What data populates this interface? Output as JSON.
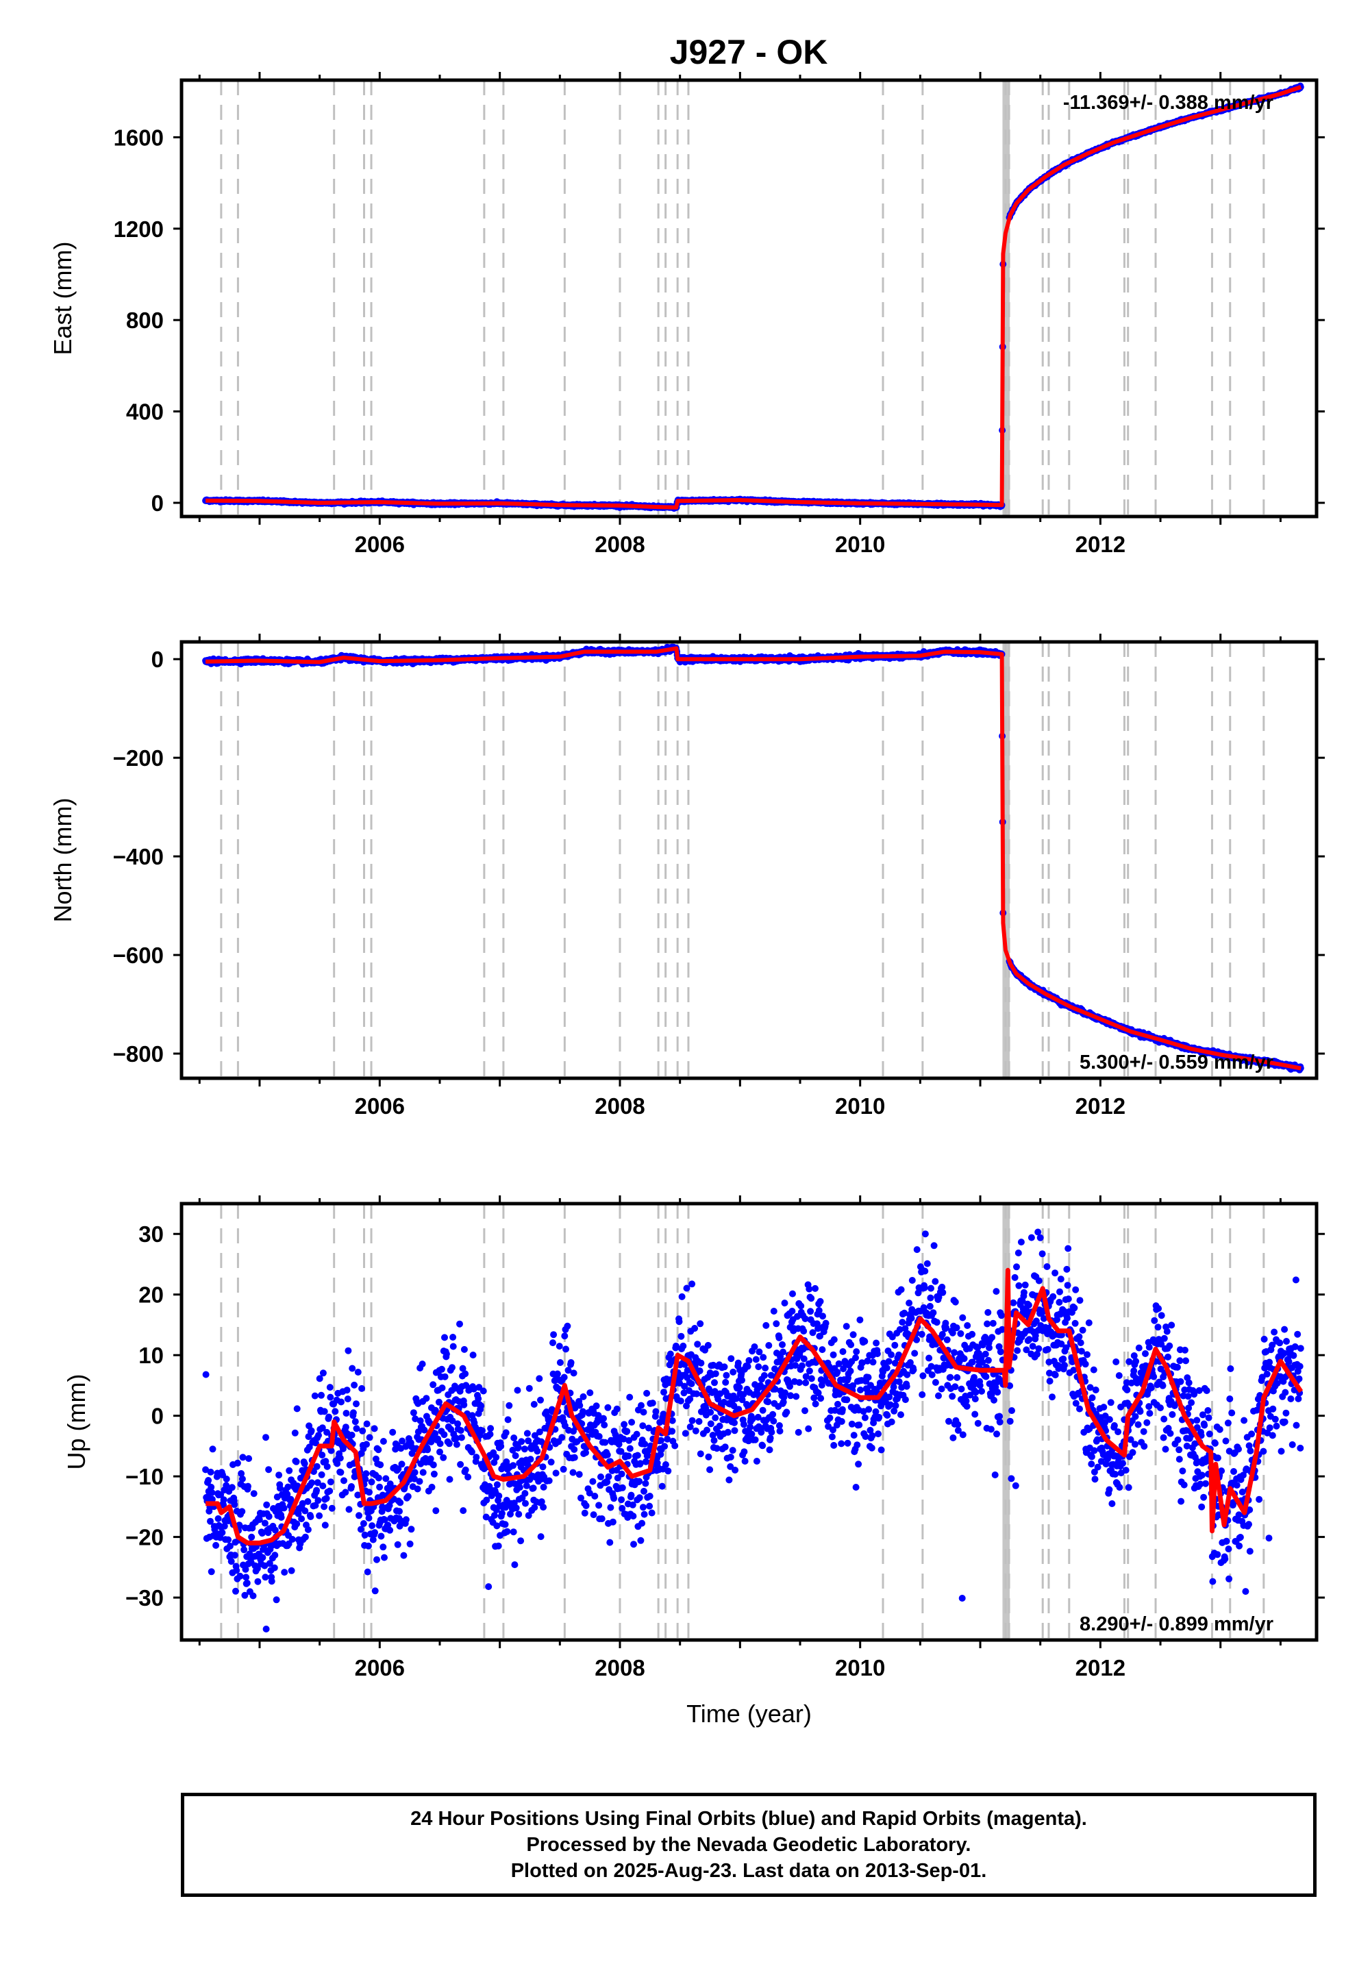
{
  "title": "J927 - OK",
  "footer": {
    "line1": "24 Hour Positions Using Final Orbits (blue) and Rapid Orbits (magenta).",
    "line2": "Processed by the Nevada Geodetic Laboratory.",
    "line3": "Plotted on 2025-Aug-23. Last data on 2013-Sep-01."
  },
  "colors": {
    "points": "#0000ff",
    "model": "#ff0000",
    "steps": "#c0c0c0"
  },
  "step_lines": [
    2004.68,
    2004.82,
    2005.62,
    2005.87,
    2005.93,
    2006.87,
    2007.03,
    2007.54,
    2008.0,
    2008.32,
    2008.38,
    2008.48,
    2008.57,
    2010.19,
    2010.52,
    2011.21,
    2011.24,
    2011.52,
    2011.57,
    2011.74,
    2012.2,
    2012.23,
    2012.46,
    2012.93,
    2013.08,
    2013.36
  ],
  "chart_data": [
    {
      "type": "scatter",
      "id": "east",
      "xlabel": "",
      "ylabel": "East (mm)",
      "xlim": [
        2004.35,
        2013.8
      ],
      "ylim": [
        -60,
        1850
      ],
      "yticks": [
        0,
        400,
        800,
        1200,
        1600
      ],
      "ytick_labels": [
        "0",
        "400",
        "800",
        "1200",
        "1600"
      ],
      "xticks": [
        2006,
        2008,
        2010,
        2012
      ],
      "xtick_labels": [
        "2006",
        "2008",
        "2010",
        "2012"
      ],
      "rate": "-11.369+/- 0.388 mm/yr",
      "rate_position": "top-right",
      "series": [
        {
          "color": "#ff0000",
          "x": [
            2004.55,
            2005.0,
            2005.5,
            2006.0,
            2006.5,
            2007.0,
            2007.5,
            2008.0,
            2008.3,
            2008.47,
            2008.48,
            2009.0,
            2009.5,
            2010.0,
            2010.5,
            2011.0,
            2011.18,
            2011.19,
            2011.21,
            2011.25,
            2011.3,
            2011.4,
            2011.55,
            2011.7,
            2011.9,
            2012.1,
            2012.3,
            2012.5,
            2012.75,
            2013.0,
            2013.25,
            2013.5,
            2013.67
          ],
          "y": [
            10,
            8,
            0,
            3,
            -4,
            -2,
            -10,
            -12,
            -18,
            -20,
            8,
            12,
            3,
            -2,
            -5,
            -8,
            -10,
            1090,
            1180,
            1260,
            1310,
            1370,
            1430,
            1480,
            1530,
            1575,
            1610,
            1645,
            1685,
            1720,
            1755,
            1790,
            1820
          ]
        }
      ]
    },
    {
      "type": "scatter",
      "id": "north",
      "xlabel": "",
      "ylabel": "North (mm)",
      "xlim": [
        2004.35,
        2013.8
      ],
      "ylim": [
        -850,
        35
      ],
      "yticks": [
        -800,
        -600,
        -400,
        -200,
        0
      ],
      "ytick_labels": [
        "−800",
        "−600",
        "−400",
        "−200",
        "0"
      ],
      "xticks": [
        2006,
        2008,
        2010,
        2012
      ],
      "xtick_labels": [
        "2006",
        "2008",
        "2010",
        "2012"
      ],
      "rate": "5.300+/- 0.559 mm/yr",
      "rate_position": "bottom-right",
      "series": [
        {
          "color": "#ff0000",
          "x": [
            2004.55,
            2005.0,
            2005.5,
            2005.7,
            2006.0,
            2006.5,
            2007.0,
            2007.5,
            2007.7,
            2008.0,
            2008.3,
            2008.47,
            2008.48,
            2009.0,
            2009.5,
            2010.0,
            2010.5,
            2010.7,
            2011.0,
            2011.18,
            2011.19,
            2011.21,
            2011.25,
            2011.3,
            2011.4,
            2011.55,
            2011.75,
            2012.0,
            2012.25,
            2012.5,
            2012.75,
            2013.0,
            2013.25,
            2013.5,
            2013.67
          ],
          "y": [
            -5,
            -3,
            -6,
            3,
            -4,
            -2,
            2,
            5,
            15,
            15,
            15,
            22,
            0,
            0,
            0,
            5,
            7,
            15,
            14,
            10,
            -535,
            -590,
            -618,
            -638,
            -658,
            -680,
            -705,
            -730,
            -755,
            -772,
            -790,
            -802,
            -812,
            -822,
            -830
          ]
        }
      ]
    },
    {
      "type": "scatter",
      "id": "up",
      "xlabel": "Time (year)",
      "ylabel": "Up (mm)",
      "xlim": [
        2004.35,
        2013.8
      ],
      "ylim": [
        -37,
        35
      ],
      "yticks": [
        -30,
        -20,
        -10,
        0,
        10,
        20,
        30
      ],
      "ytick_labels": [
        "−30",
        "−20",
        "−10",
        "0",
        "10",
        "20",
        "30"
      ],
      "xticks": [
        2006,
        2008,
        2010,
        2012
      ],
      "xtick_labels": [
        "2006",
        "2008",
        "2010",
        "2012"
      ],
      "rate": "8.290+/- 0.899 mm/yr",
      "rate_position": "bottom-right",
      "series": [
        {
          "color": "#ff0000",
          "x": [
            2004.55,
            2004.65,
            2004.68,
            2004.75,
            2004.82,
            2004.9,
            2005.0,
            2005.1,
            2005.2,
            2005.35,
            2005.5,
            2005.6,
            2005.62,
            2005.7,
            2005.8,
            2005.87,
            2005.93,
            2006.05,
            2006.2,
            2006.35,
            2006.55,
            2006.7,
            2006.87,
            2006.95,
            2007.03,
            2007.2,
            2007.35,
            2007.54,
            2007.6,
            2007.75,
            2007.9,
            2008.0,
            2008.1,
            2008.25,
            2008.32,
            2008.38,
            2008.48,
            2008.57,
            2008.75,
            2008.95,
            2009.1,
            2009.3,
            2009.5,
            2009.6,
            2009.8,
            2010.0,
            2010.15,
            2010.3,
            2010.5,
            2010.6,
            2010.8,
            2011.0,
            2011.2,
            2011.21,
            2011.23,
            2011.24,
            2011.3,
            2011.4,
            2011.5,
            2011.52,
            2011.57,
            2011.65,
            2011.74,
            2011.9,
            2012.05,
            2012.2,
            2012.23,
            2012.35,
            2012.46,
            2012.55,
            2012.7,
            2012.85,
            2012.92,
            2012.93,
            2012.96,
            2013.03,
            2013.08,
            2013.2,
            2013.3,
            2013.36,
            2013.5,
            2013.67
          ],
          "y": [
            -14.5,
            -14.5,
            -16,
            -15,
            -20,
            -21,
            -21,
            -20.5,
            -19,
            -12,
            -5,
            -5,
            -1,
            -4,
            -6,
            -14.5,
            -14.5,
            -14,
            -11,
            -5,
            2,
            0,
            -6.5,
            -10,
            -10.5,
            -10,
            -7,
            5,
            0,
            -5,
            -8.5,
            -7.5,
            -10,
            -9,
            -2,
            -3,
            10,
            9,
            2,
            0,
            1,
            6,
            13,
            11,
            5,
            3,
            3,
            7,
            16,
            14,
            8,
            7.5,
            7.5,
            5,
            24,
            8,
            17,
            15,
            20,
            21,
            16,
            14,
            14,
            1,
            -4,
            -6.5,
            0,
            4,
            11,
            8,
            0,
            -5,
            -6,
            -19,
            -8,
            -18,
            -12,
            -16,
            -6,
            3,
            9,
            4
          ]
        }
      ]
    }
  ]
}
